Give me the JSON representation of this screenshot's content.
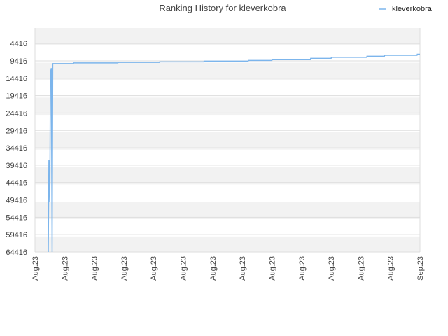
{
  "chart_data": {
    "type": "line",
    "title": "Ranking History for kleverkobra",
    "xlabel": "",
    "ylabel": "",
    "y_inverted": true,
    "ylim": [
      64416,
      0
    ],
    "y_ticks": [
      4416,
      9416,
      14416,
      19416,
      24416,
      29416,
      34416,
      39416,
      44416,
      49416,
      54416,
      59416,
      64416
    ],
    "x_tick_labels": [
      "Aug.23",
      "Aug.23",
      "Aug.23",
      "Aug.23",
      "Aug.23",
      "Aug.23",
      "Aug.23",
      "Aug.23",
      "Aug.23",
      "Aug.23",
      "Aug.23",
      "Aug.23",
      "Aug.23",
      "Sep.23"
    ],
    "legend": {
      "position": "top-right"
    },
    "grid": true,
    "colors": {
      "series": "#7cb5ec",
      "band_dark": "#f2f2f2",
      "band_light": "#ffffff",
      "grid": "#dddddd"
    },
    "series": [
      {
        "name": "kleverkobra",
        "x_unit": "days since first tick",
        "points": [
          [
            0.45,
            64416
          ],
          [
            0.47,
            38000
          ],
          [
            0.5,
            50000
          ],
          [
            0.52,
            13000
          ],
          [
            0.55,
            11500
          ],
          [
            0.58,
            64416
          ],
          [
            0.6,
            10200
          ],
          [
            1.3,
            10200
          ],
          [
            1.31,
            10000
          ],
          [
            2.8,
            10000
          ],
          [
            2.81,
            9850
          ],
          [
            4.2,
            9850
          ],
          [
            4.21,
            9700
          ],
          [
            5.7,
            9700
          ],
          [
            5.71,
            9500
          ],
          [
            7.2,
            9500
          ],
          [
            7.21,
            9300
          ],
          [
            8.0,
            9300
          ],
          [
            8.01,
            9050
          ],
          [
            9.3,
            9050
          ],
          [
            9.31,
            8700
          ],
          [
            10.0,
            8700
          ],
          [
            10.01,
            8400
          ],
          [
            11.2,
            8400
          ],
          [
            11.21,
            8100
          ],
          [
            11.8,
            8100
          ],
          [
            11.81,
            7800
          ],
          [
            12.9,
            7800
          ],
          [
            12.91,
            7500
          ],
          [
            13.0,
            7500
          ]
        ]
      }
    ]
  }
}
